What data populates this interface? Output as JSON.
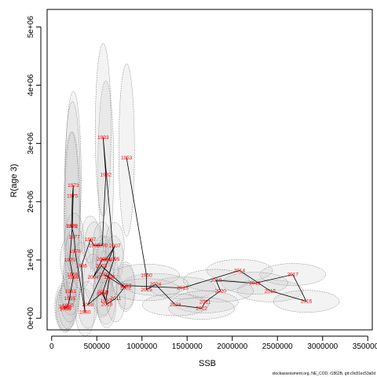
{
  "chart_data": {
    "type": "scatter",
    "title": "",
    "xlabel": "SSB",
    "ylabel": "R(age 3)",
    "xlim": [
      -50000,
      3550000
    ],
    "ylim": [
      -200000,
      5300000
    ],
    "xticks": [
      0,
      500000,
      1000000,
      1500000,
      2000000,
      2500000,
      3000000,
      3500000
    ],
    "xtick_labels": [
      "0",
      "500000",
      "1000000",
      "1500000",
      "2000000",
      "2500000",
      "3000000",
      "3500000"
    ],
    "yticks": [
      0,
      1000000,
      2000000,
      3000000,
      4000000,
      5000000
    ],
    "ytick_labels": [
      "0e+00",
      "1e+06",
      "2e+06",
      "3e+06",
      "4e+06",
      "5e+06"
    ],
    "grid": false,
    "legend": "none",
    "footer": "stockassessment.org, NE_COD, r1862B, git:c9c81ec53a0d",
    "colors": {
      "points": "#ff0000",
      "line": "#000000",
      "ellipse_fill": "#c8c8c8",
      "ellipse_stroke": "#808080"
    },
    "series": [
      {
        "points": [
          {
            "year": "1946",
            "x": 150000,
            "y": 160000
          },
          {
            "year": "1947",
            "x": 140000,
            "y": 200000
          },
          {
            "year": "1948",
            "x": 160000,
            "y": 180000
          },
          {
            "year": "1950",
            "x": 180000,
            "y": 220000
          },
          {
            "year": "1955",
            "x": 200000,
            "y": 340000
          },
          {
            "year": "1961",
            "x": 210000,
            "y": 460000
          },
          {
            "year": "1968",
            "x": 240000,
            "y": 700000
          },
          {
            "year": "1969",
            "x": 230000,
            "y": 750000
          },
          {
            "year": "1970",
            "x": 200000,
            "y": 1000000
          },
          {
            "year": "1972",
            "x": 230000,
            "y": 1580000
          },
          {
            "year": "1973",
            "x": 240000,
            "y": 2280000
          },
          {
            "year": "1975",
            "x": 230000,
            "y": 2100000
          },
          {
            "year": "1976",
            "x": 220000,
            "y": 1580000
          },
          {
            "year": "1977",
            "x": 250000,
            "y": 1400000
          },
          {
            "year": "1978",
            "x": 260000,
            "y": 1150000
          },
          {
            "year": "1980",
            "x": 370000,
            "y": 100000
          },
          {
            "year": "1986",
            "x": 330000,
            "y": 900000
          },
          {
            "year": "1987",
            "x": 430000,
            "y": 1350000
          },
          {
            "year": "1988",
            "x": 470000,
            "y": 1250000
          },
          {
            "year": "1990",
            "x": 560000,
            "y": 1250000
          },
          {
            "year": "1992",
            "x": 600000,
            "y": 2460000
          },
          {
            "year": "1993",
            "x": 570000,
            "y": 3100000
          },
          {
            "year": "1995",
            "x": 690000,
            "y": 1010000
          },
          {
            "year": "1996",
            "x": 560000,
            "y": 420000
          },
          {
            "year": "1997",
            "x": 600000,
            "y": 300000
          },
          {
            "year": "1998",
            "x": 640000,
            "y": 700000
          },
          {
            "year": "2000",
            "x": 580000,
            "y": 750000
          },
          {
            "year": "2002",
            "x": 820000,
            "y": 520000
          },
          {
            "year": "2003",
            "x": 550000,
            "y": 900000
          },
          {
            "year": "2004",
            "x": 460000,
            "y": 700000
          },
          {
            "year": "2005",
            "x": 560000,
            "y": 1010000
          },
          {
            "year": "2006",
            "x": 600000,
            "y": 1000000
          },
          {
            "year": "2007",
            "x": 700000,
            "y": 1240000
          },
          {
            "year": "2008",
            "x": 400000,
            "y": 230000
          },
          {
            "year": "2009",
            "x": 570000,
            "y": 450000
          },
          {
            "year": "2010",
            "x": 610000,
            "y": 240000
          },
          {
            "year": "2011",
            "x": 710000,
            "y": 340000
          },
          {
            "year": "2012",
            "x": 820000,
            "y": 560000
          },
          {
            "year": "2013",
            "x": 1450000,
            "y": 520000
          },
          {
            "year": "2014",
            "x": 2080000,
            "y": 820000
          },
          {
            "year": "2015",
            "x": 2420000,
            "y": 470000
          },
          {
            "year": "2016",
            "x": 2820000,
            "y": 290000
          },
          {
            "year": "2017",
            "x": 2670000,
            "y": 750000
          },
          {
            "year": "2018",
            "x": 2250000,
            "y": 600000
          },
          {
            "year": "2019",
            "x": 1820000,
            "y": 650000
          },
          {
            "year": "2020",
            "x": 1870000,
            "y": 470000
          },
          {
            "year": "2021",
            "x": 1700000,
            "y": 280000
          },
          {
            "year": "2022",
            "x": 1660000,
            "y": 170000
          },
          {
            "year": "2023",
            "x": 1370000,
            "y": 230000
          },
          {
            "year": "2024",
            "x": 1150000,
            "y": 580000
          },
          {
            "year": "2025",
            "x": 1050000,
            "y": 490000
          },
          {
            "year": "1950b",
            "x": 1050000,
            "y": 740000
          },
          {
            "year": "1953b",
            "x": 830000,
            "y": 2750000
          }
        ]
      }
    ]
  }
}
